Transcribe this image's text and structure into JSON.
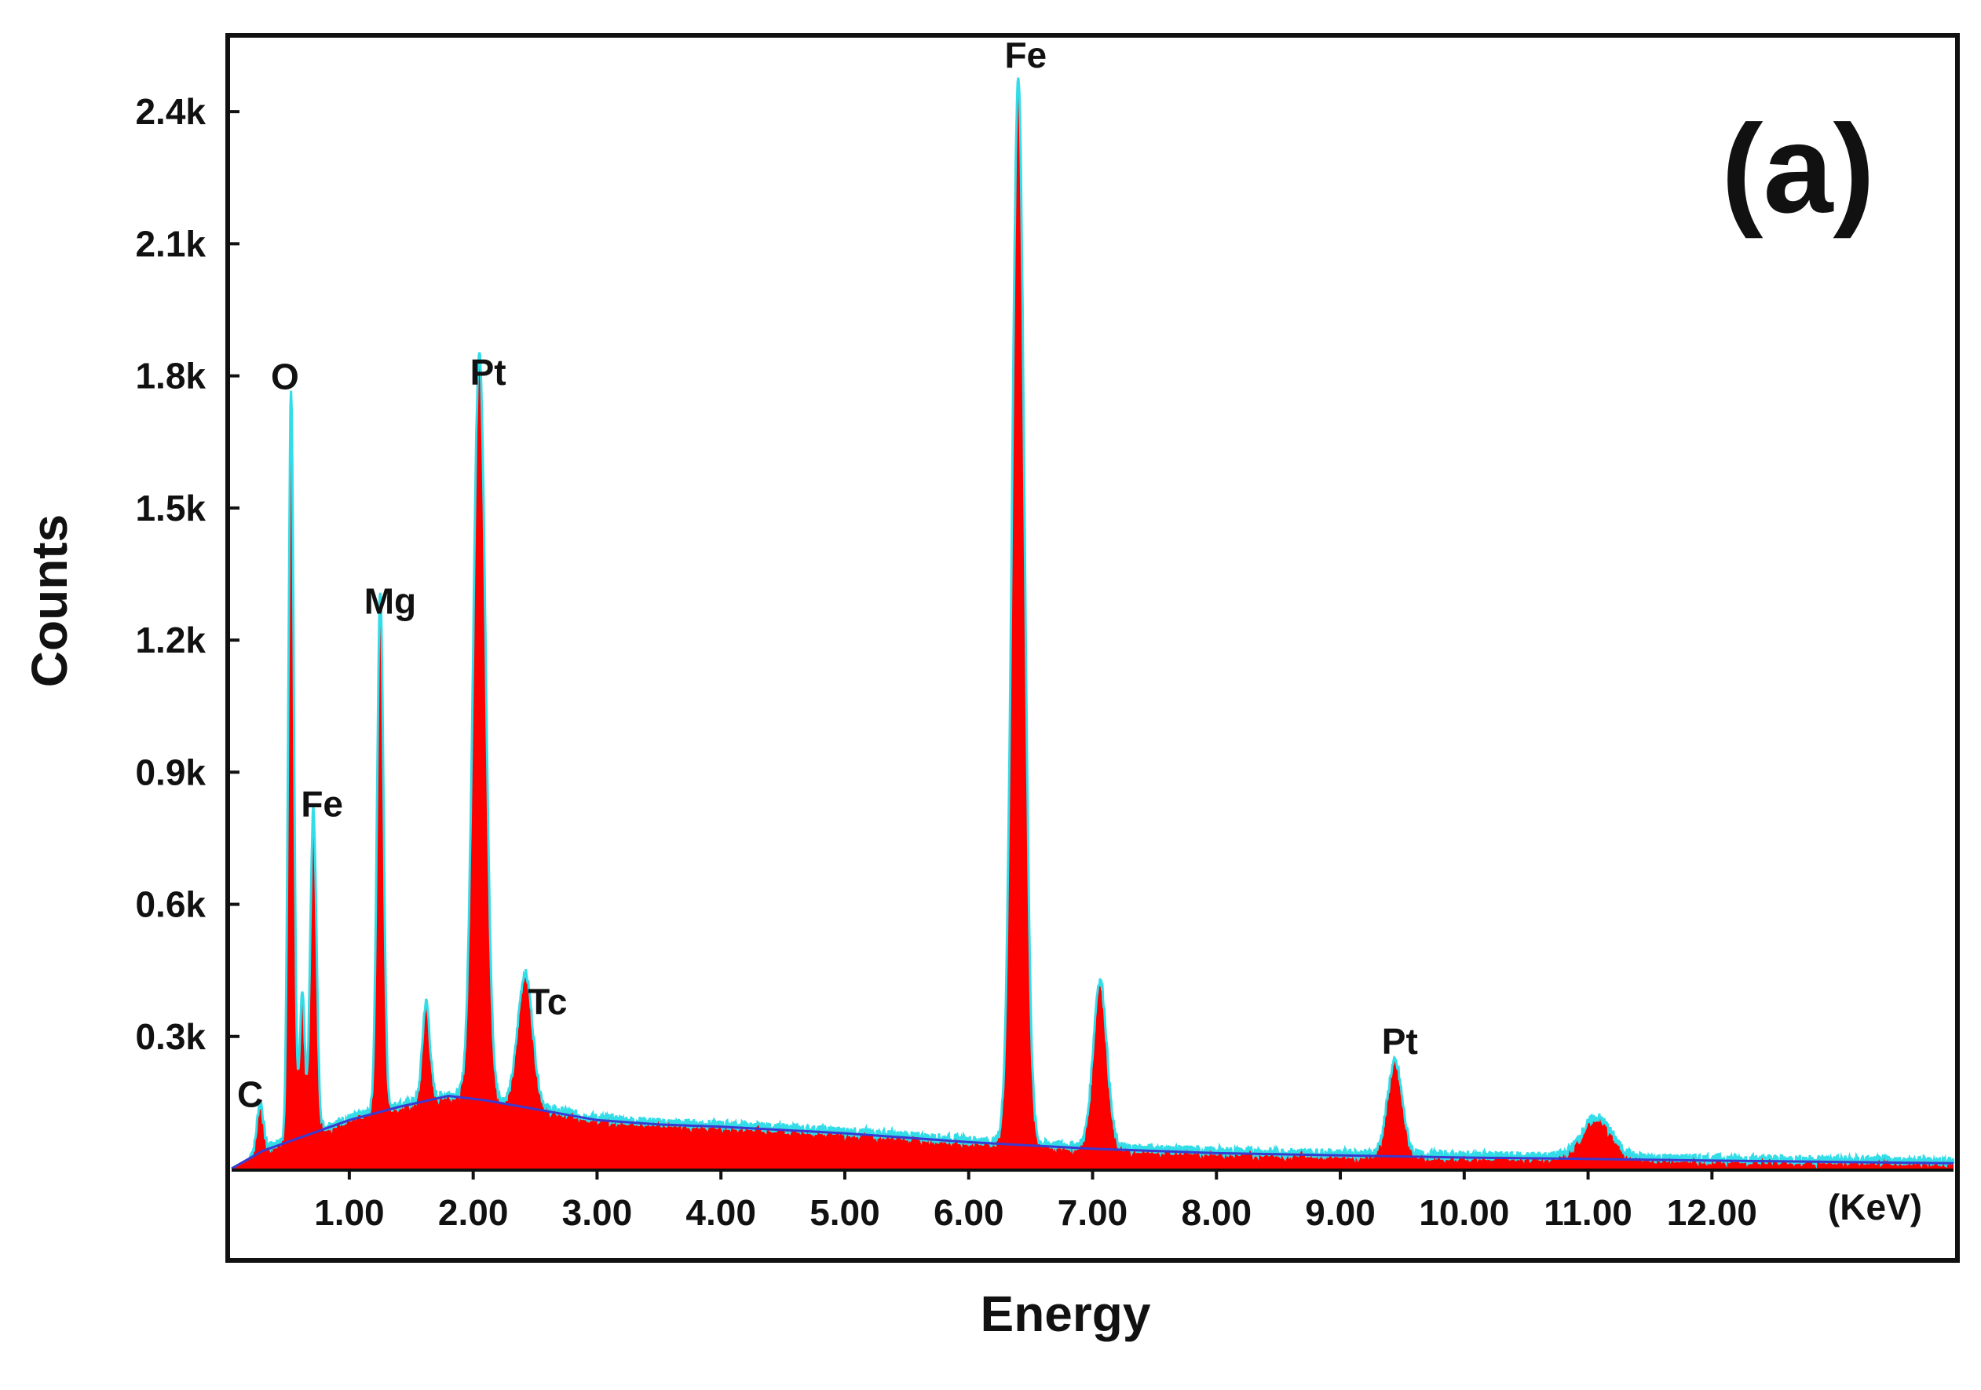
{
  "chart_data": {
    "type": "area",
    "panel_label": "(a)",
    "title": "",
    "xlabel": "Energy",
    "ylabel": "Counts",
    "x_unit": "(KeV)",
    "xlim": [
      0.05,
      13.95
    ],
    "ylim": [
      0,
      2.6
    ],
    "x_ticks": [
      {
        "value": 1,
        "label": "1.00"
      },
      {
        "value": 2,
        "label": "2.00"
      },
      {
        "value": 3,
        "label": "3.00"
      },
      {
        "value": 4,
        "label": "4.00"
      },
      {
        "value": 5,
        "label": "5.00"
      },
      {
        "value": 6,
        "label": "6.00"
      },
      {
        "value": 7,
        "label": "7.00"
      },
      {
        "value": 8,
        "label": "8.00"
      },
      {
        "value": 9,
        "label": "9.00"
      },
      {
        "value": 10,
        "label": "10.00"
      },
      {
        "value": 11,
        "label": "11.00"
      },
      {
        "value": 12,
        "label": "12.00"
      }
    ],
    "y_ticks": [
      {
        "value": 0.3,
        "label": "0.3k"
      },
      {
        "value": 0.6,
        "label": "0.6k"
      },
      {
        "value": 0.9,
        "label": "0.9k"
      },
      {
        "value": 1.2,
        "label": "1.2k"
      },
      {
        "value": 1.5,
        "label": "1.5k"
      },
      {
        "value": 1.8,
        "label": "1.8k"
      },
      {
        "value": 2.1,
        "label": "2.1k"
      },
      {
        "value": 2.4,
        "label": "2.4k"
      }
    ],
    "grid": false,
    "colors": {
      "fill": "#ff0000",
      "outline": "#33dde8",
      "background_fit": "#3a3ad0",
      "axes": "#111111"
    },
    "background": {
      "x": [
        0.05,
        0.3,
        0.6,
        1.0,
        1.4,
        1.8,
        2.1,
        2.5,
        3.0,
        3.5,
        4.0,
        5.0,
        6.0,
        7.0,
        8.0,
        9.0,
        10.0,
        11.0,
        12.0,
        13.0,
        13.95
      ],
      "y": [
        0.0,
        0.04,
        0.07,
        0.11,
        0.14,
        0.165,
        0.155,
        0.135,
        0.11,
        0.1,
        0.095,
        0.08,
        0.06,
        0.045,
        0.035,
        0.03,
        0.025,
        0.022,
        0.018,
        0.015,
        0.012
      ]
    },
    "peaks": [
      {
        "label": "C",
        "x": 0.28,
        "height": 0.11,
        "width": 0.025,
        "label_x": 0.2,
        "label_y": 0.14
      },
      {
        "label": "O",
        "x": 0.53,
        "height": 1.7,
        "width": 0.022,
        "label_x": 0.48,
        "label_y": 1.77
      },
      {
        "label": "",
        "x": 0.62,
        "height": 0.33,
        "width": 0.02
      },
      {
        "label": "Fe",
        "x": 0.71,
        "height": 0.73,
        "width": 0.025,
        "label_x": 0.78,
        "label_y": 0.8
      },
      {
        "label": "Mg",
        "x": 1.25,
        "height": 1.18,
        "width": 0.026,
        "label_x": 1.33,
        "label_y": 1.26
      },
      {
        "label": "",
        "x": 1.62,
        "height": 0.22,
        "width": 0.03
      },
      {
        "label": "Pt",
        "x": 2.05,
        "height": 1.7,
        "width": 0.05,
        "label_x": 2.12,
        "label_y": 1.78
      },
      {
        "label": "Tc",
        "x": 2.42,
        "height": 0.3,
        "width": 0.06,
        "label_x": 2.6,
        "label_y": 0.35
      },
      {
        "label": "Fe",
        "x": 6.4,
        "height": 2.42,
        "width": 0.05,
        "label_x": 6.46,
        "label_y": 2.5
      },
      {
        "label": "",
        "x": 7.06,
        "height": 0.38,
        "width": 0.055
      },
      {
        "label": "Pt",
        "x": 9.44,
        "height": 0.21,
        "width": 0.06,
        "label_x": 9.48,
        "label_y": 0.26
      },
      {
        "label": "",
        "x": 11.07,
        "height": 0.09,
        "width": 0.12
      }
    ]
  }
}
